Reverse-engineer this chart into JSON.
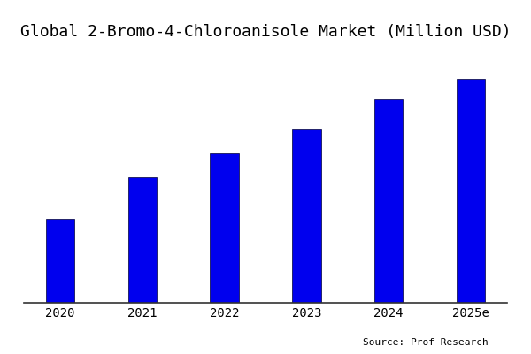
{
  "title": "Global 2-Bromo-4-Chloroanisole Market (Million USD)",
  "categories": [
    "2020",
    "2021",
    "2022",
    "2023",
    "2024",
    "2025e"
  ],
  "values": [
    28,
    42,
    50,
    58,
    68,
    75
  ],
  "bar_color": "#0000EE",
  "background_color": "#ffffff",
  "source_text": "Source: Prof Research",
  "title_fontsize": 13,
  "tick_fontsize": 10,
  "source_fontsize": 8,
  "ylim": [
    0,
    85
  ],
  "bar_width": 0.35
}
